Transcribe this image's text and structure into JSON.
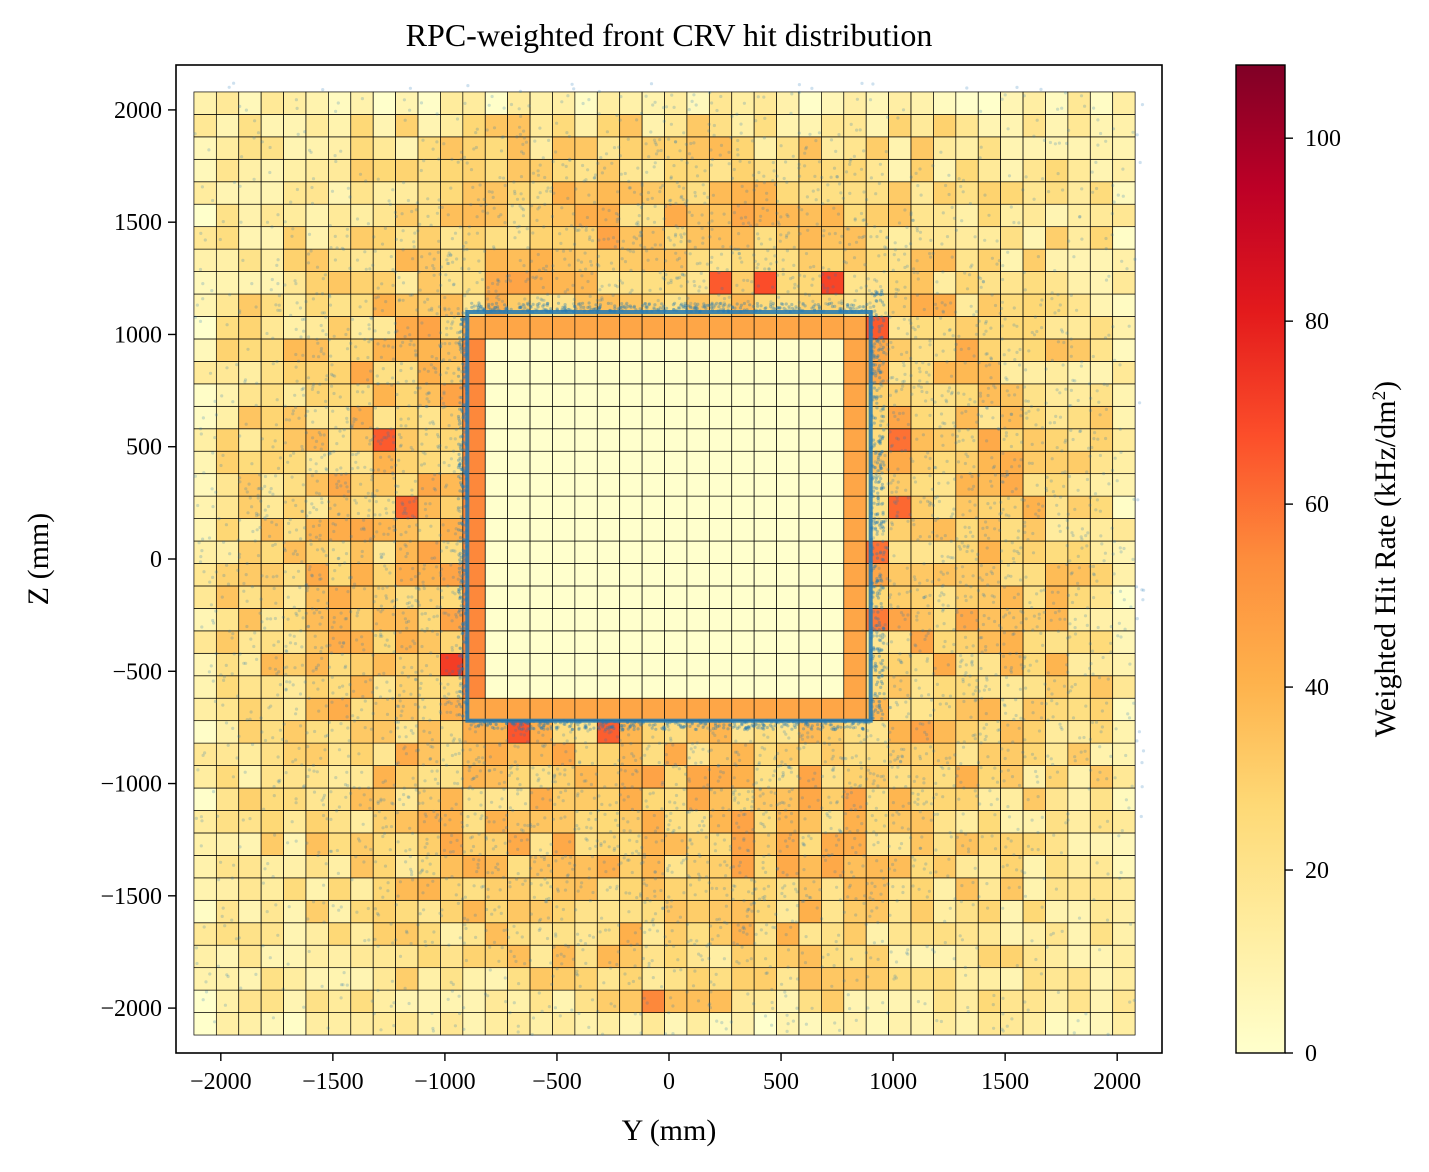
{
  "chart_data": {
    "type": "heatmap",
    "title": "RPC-weighted front CRV hit distribution",
    "xlabel": "Y (mm)",
    "ylabel": "Z (mm)",
    "xlim": [
      -2200,
      2200
    ],
    "ylim": [
      -2200,
      2200
    ],
    "x_ticks": [
      -2000,
      -1500,
      -1000,
      -500,
      0,
      500,
      1000,
      1500,
      2000
    ],
    "x_tick_labels": [
      "−2000",
      "−1500",
      "−1000",
      "−500",
      "0",
      "500",
      "1000",
      "1500",
      "2000"
    ],
    "y_ticks": [
      -2000,
      -1500,
      -1000,
      -500,
      0,
      500,
      1000,
      1500,
      2000
    ],
    "y_tick_labels": [
      "−2000",
      "−1500",
      "−1000",
      "−500",
      "0",
      "500",
      "1000",
      "1500",
      "2000"
    ],
    "grid": {
      "y_range": [
        -2120,
        2120
      ],
      "z_range": [
        -2120,
        2120
      ],
      "cell_size_y": 100,
      "cell_size_z": 100
    },
    "inner_region": {
      "y": [
        -900,
        900
      ],
      "z": [
        -720,
        1100
      ]
    },
    "hot_cells": [
      {
        "y": -1300,
        "z": 500,
        "value": 65
      },
      {
        "y": -1200,
        "z": 200,
        "value": 62
      },
      {
        "y": -1000,
        "z": -500,
        "value": 72
      },
      {
        "y": -650,
        "z": -800,
        "value": 66
      },
      {
        "y": -300,
        "z": -800,
        "value": 64
      },
      {
        "y": 200,
        "z": 1200,
        "value": 65
      },
      {
        "y": 400,
        "z": 1200,
        "value": 68
      },
      {
        "y": 700,
        "z": 1200,
        "value": 70
      },
      {
        "y": 1000,
        "z": 500,
        "value": 60
      },
      {
        "y": 1000,
        "z": 200,
        "value": 62
      },
      {
        "y": -50,
        "z": -1950,
        "value": 55
      },
      {
        "y": 950,
        "z": 1000,
        "value": 65
      },
      {
        "y": 950,
        "z": 0,
        "value": 60
      },
      {
        "y": 950,
        "z": -250,
        "value": 58
      }
    ],
    "scatter_color": "#1f77b4",
    "colormap": "YlOrRd",
    "colorbar": {
      "label": "Weighted Hit Rate (kHz/dm²)",
      "min": 0,
      "max": 108,
      "ticks": [
        0,
        20,
        40,
        60,
        80,
        100
      ],
      "tick_labels": [
        "0",
        "20",
        "40",
        "60",
        "80",
        "100"
      ]
    }
  }
}
